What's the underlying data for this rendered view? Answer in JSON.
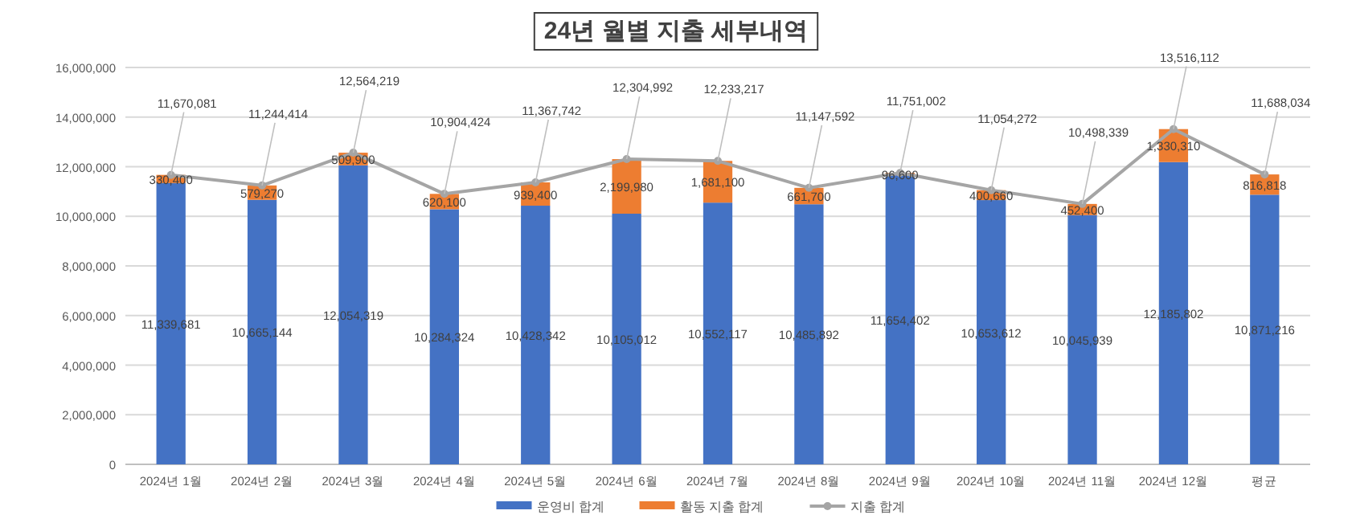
{
  "chart_data": {
    "type": "bar",
    "title": "24년 월별 지출 세부내역",
    "categories": [
      "2024년 1월",
      "2024년 2월",
      "2024년 3월",
      "2024년 4월",
      "2024년 5월",
      "2024년 6월",
      "2024년 7월",
      "2024년 8월",
      "2024년 9월",
      "2024년 10월",
      "2024년 11월",
      "2024년 12월",
      "평균"
    ],
    "stacked": true,
    "series": [
      {
        "name": "운영비 합계",
        "color": "#4472c4",
        "values": [
          11339681,
          10665144,
          12054319,
          10284324,
          10428342,
          10105012,
          10552117,
          10485892,
          11654402,
          10653612,
          10045939,
          12185802,
          10871216
        ],
        "value_labels": [
          "11,339,681",
          "10,665,144",
          "12,054,319",
          "10,284,324",
          "10,428,342",
          "10,105,012",
          "10,552,117",
          "10,485,892",
          "11,654,402",
          "10,653,612",
          "10,045,939",
          "12,185,802",
          "10,871,216"
        ]
      },
      {
        "name": "활동 지출 합계",
        "color": "#ed7d31",
        "values": [
          330400,
          579270,
          509900,
          620100,
          939400,
          2199980,
          1681100,
          661700,
          96600,
          400660,
          452400,
          1330310,
          816818
        ],
        "value_labels": [
          "330,400",
          "579,270",
          "509,900",
          "620,100",
          "939,400",
          "2,199,980",
          "1,681,100",
          "661,700",
          "96,600",
          "400,660",
          "452,400",
          "1,330,310",
          "816,818"
        ]
      },
      {
        "name": "지출 합계",
        "type": "line",
        "color": "#a5a5a5",
        "marker": "circle",
        "values": [
          11670081,
          11244414,
          12564219,
          10904424,
          11367742,
          12304992,
          12233217,
          11147592,
          11751002,
          11054272,
          10498339,
          13516112,
          11688034
        ],
        "value_labels": [
          "11,670,081",
          "11,244,414",
          "12,564,219",
          "10,904,424",
          "11,367,742",
          "12,304,992",
          "12,233,217",
          "11,147,592",
          "11,751,002",
          "11,054,272",
          "10,498,339",
          "13,516,112",
          "11,688,034"
        ]
      }
    ],
    "ylim": [
      0,
      16000000
    ],
    "yticks": [
      {
        "value": 0,
        "label": "0"
      },
      {
        "value": 2000000,
        "label": "2,000,000"
      },
      {
        "value": 4000000,
        "label": "4,000,000"
      },
      {
        "value": 6000000,
        "label": "6,000,000"
      },
      {
        "value": 8000000,
        "label": "8,000,000"
      },
      {
        "value": 10000000,
        "label": "10,000,000"
      },
      {
        "value": 12000000,
        "label": "12,000,000"
      },
      {
        "value": 14000000,
        "label": "14,000,000"
      },
      {
        "value": 16000000,
        "label": "16,000,000"
      }
    ],
    "grid": "y",
    "legend": "bottom"
  }
}
